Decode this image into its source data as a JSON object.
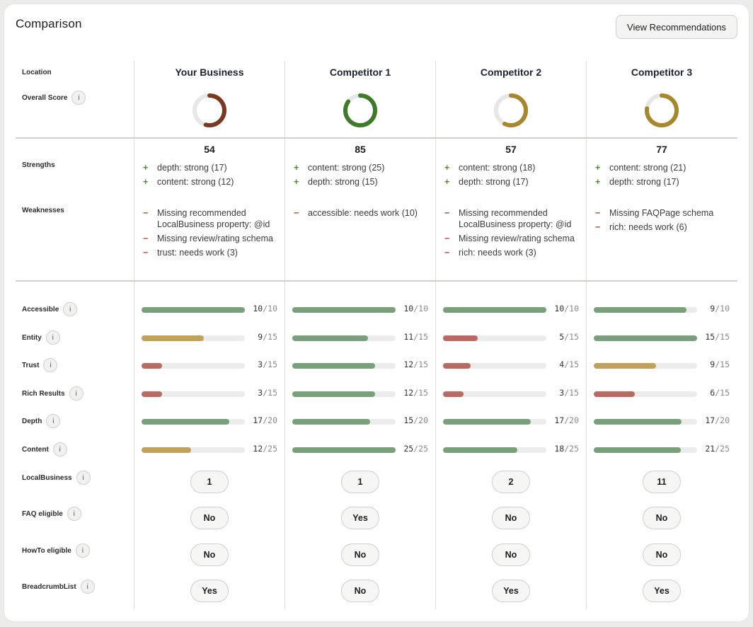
{
  "title": "Comparison",
  "view_button": "View Recommendations",
  "row_labels": {
    "location": "Location",
    "overall": "Overall Score",
    "strengths": "Strengths",
    "weaknesses": "Weaknesses",
    "accessible": "Accessible",
    "entity": "Entity",
    "trust": "Trust",
    "rich": "Rich Results",
    "depth": "Depth",
    "content": "Content",
    "localbusiness": "LocalBusiness",
    "faq": "FAQ eligible",
    "howto": "HowTo eligible",
    "breadcrumb": "BreadcrumbList"
  },
  "info_glyph": "i",
  "marks": {
    "plus": "+",
    "minus": "−"
  },
  "colors": {
    "green": "#78a07a",
    "yellow": "#c2a25a",
    "red": "#b96b62",
    "ring_brown": "#7a3a22",
    "ring_green": "#3f7a2a",
    "ring_gold": "#a7872c",
    "ring_track": "#e7e7e7"
  },
  "columns": [
    {
      "name": "Your Business",
      "score": 54,
      "ring_color": "#7a3a22",
      "strengths": [
        "depth: strong (17)",
        "content: strong (12)"
      ],
      "weaknesses": [
        "Missing recommended LocalBusiness property: @id",
        "Missing review/rating schema",
        "trust: needs work (3)"
      ],
      "metrics": [
        {
          "value": 10,
          "max": 10,
          "color": "#78a07a"
        },
        {
          "value": 9,
          "max": 15,
          "color": "#c2a25a"
        },
        {
          "value": 3,
          "max": 15,
          "color": "#b96b62"
        },
        {
          "value": 3,
          "max": 15,
          "color": "#b96b62"
        },
        {
          "value": 17,
          "max": 20,
          "color": "#78a07a"
        },
        {
          "value": 12,
          "max": 25,
          "color": "#c2a25a"
        }
      ],
      "pills": [
        "1",
        "No",
        "No",
        "Yes"
      ]
    },
    {
      "name": "Competitor 1",
      "score": 85,
      "ring_color": "#3f7a2a",
      "strengths": [
        "content: strong (25)",
        "depth: strong (15)"
      ],
      "weaknesses": [
        "accessible: needs work (10)"
      ],
      "metrics": [
        {
          "value": 10,
          "max": 10,
          "color": "#78a07a"
        },
        {
          "value": 11,
          "max": 15,
          "color": "#78a07a"
        },
        {
          "value": 12,
          "max": 15,
          "color": "#78a07a"
        },
        {
          "value": 12,
          "max": 15,
          "color": "#78a07a"
        },
        {
          "value": 15,
          "max": 20,
          "color": "#78a07a"
        },
        {
          "value": 25,
          "max": 25,
          "color": "#78a07a"
        }
      ],
      "pills": [
        "1",
        "Yes",
        "No",
        "No"
      ]
    },
    {
      "name": "Competitor 2",
      "score": 57,
      "ring_color": "#a7872c",
      "strengths": [
        "content: strong (18)",
        "depth: strong (17)"
      ],
      "weaknesses": [
        "Missing recommended LocalBusiness property: @id",
        "Missing review/rating schema",
        "rich: needs work (3)"
      ],
      "metrics": [
        {
          "value": 10,
          "max": 10,
          "color": "#78a07a"
        },
        {
          "value": 5,
          "max": 15,
          "color": "#b96b62"
        },
        {
          "value": 4,
          "max": 15,
          "color": "#b96b62"
        },
        {
          "value": 3,
          "max": 15,
          "color": "#b96b62"
        },
        {
          "value": 17,
          "max": 20,
          "color": "#78a07a"
        },
        {
          "value": 18,
          "max": 25,
          "color": "#78a07a"
        }
      ],
      "pills": [
        "2",
        "No",
        "No",
        "Yes"
      ]
    },
    {
      "name": "Competitor 3",
      "score": 77,
      "ring_color": "#a7872c",
      "strengths": [
        "content: strong (21)",
        "depth: strong (17)"
      ],
      "weaknesses": [
        "Missing FAQPage schema",
        "rich: needs work (6)"
      ],
      "metrics": [
        {
          "value": 9,
          "max": 10,
          "color": "#78a07a"
        },
        {
          "value": 15,
          "max": 15,
          "color": "#78a07a"
        },
        {
          "value": 9,
          "max": 15,
          "color": "#c2a25a"
        },
        {
          "value": 6,
          "max": 15,
          "color": "#b96b62"
        },
        {
          "value": 17,
          "max": 20,
          "color": "#78a07a"
        },
        {
          "value": 21,
          "max": 25,
          "color": "#78a07a"
        }
      ],
      "pills": [
        "11",
        "No",
        "No",
        "Yes"
      ]
    }
  ]
}
